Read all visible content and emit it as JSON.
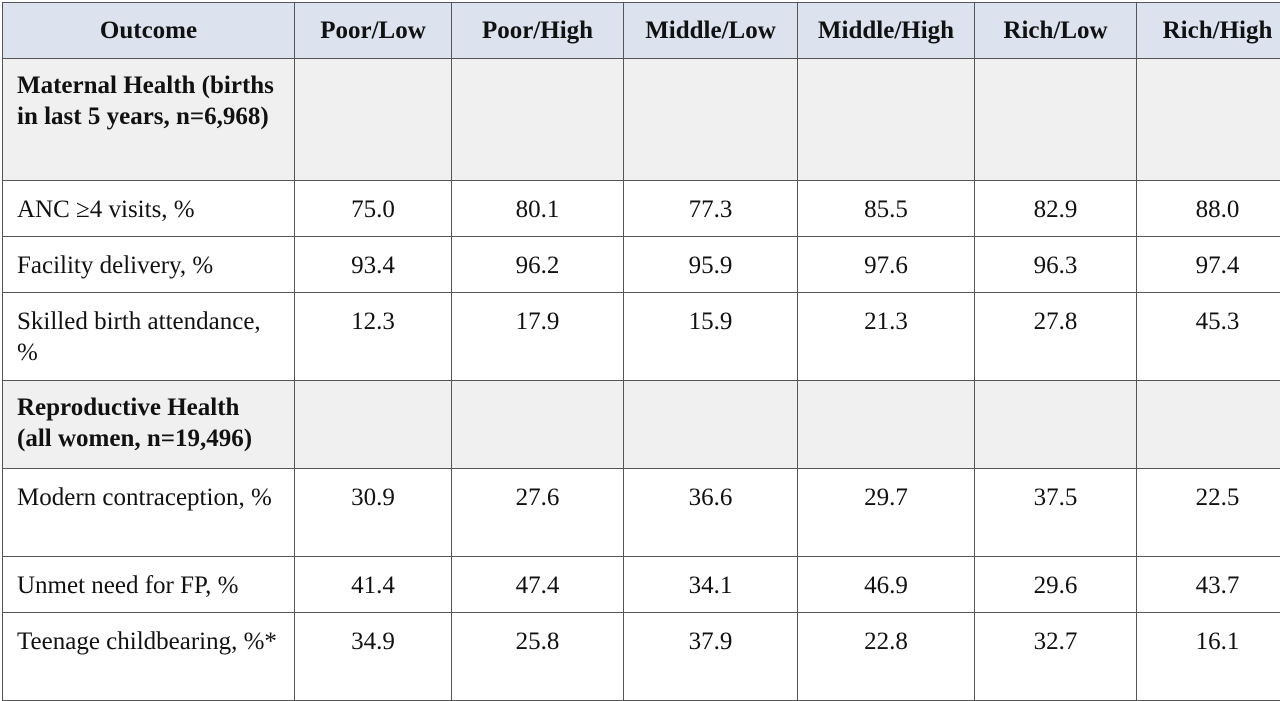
{
  "table": {
    "headers": [
      "Outcome",
      "Poor/Low",
      "Poor/High",
      "Middle/Low",
      "Middle/High",
      "Rich/Low",
      "Rich/High"
    ],
    "sections": [
      {
        "title": "Maternal Health (births in last 5 years, n=6,968)",
        "rows": [
          {
            "label": "ANC ≥4 visits, %",
            "values": [
              "75.0",
              "80.1",
              "77.3",
              "85.5",
              "82.9",
              "88.0"
            ]
          },
          {
            "label": "Facility delivery, %",
            "values": [
              "93.4",
              "96.2",
              "95.9",
              "97.6",
              "96.3",
              "97.4"
            ]
          },
          {
            "label": "Skilled birth attendance, %",
            "values": [
              "12.3",
              "17.9",
              "15.9",
              "21.3",
              "27.8",
              "45.3"
            ]
          }
        ]
      },
      {
        "title": "Reproductive Health (all women, n=19,496)",
        "rows": [
          {
            "label": "Modern contraception, %",
            "values": [
              "30.9",
              "27.6",
              "36.6",
              "29.7",
              "37.5",
              "22.5"
            ]
          },
          {
            "label": "Unmet need for FP, %",
            "values": [
              "41.4",
              "47.4",
              "34.1",
              "46.9",
              "29.6",
              "43.7"
            ]
          },
          {
            "label": "Teenage childbearing, %*",
            "values": [
              "34.9",
              "25.8",
              "37.9",
              "22.8",
              "32.7",
              "16.1"
            ]
          }
        ]
      }
    ]
  }
}
